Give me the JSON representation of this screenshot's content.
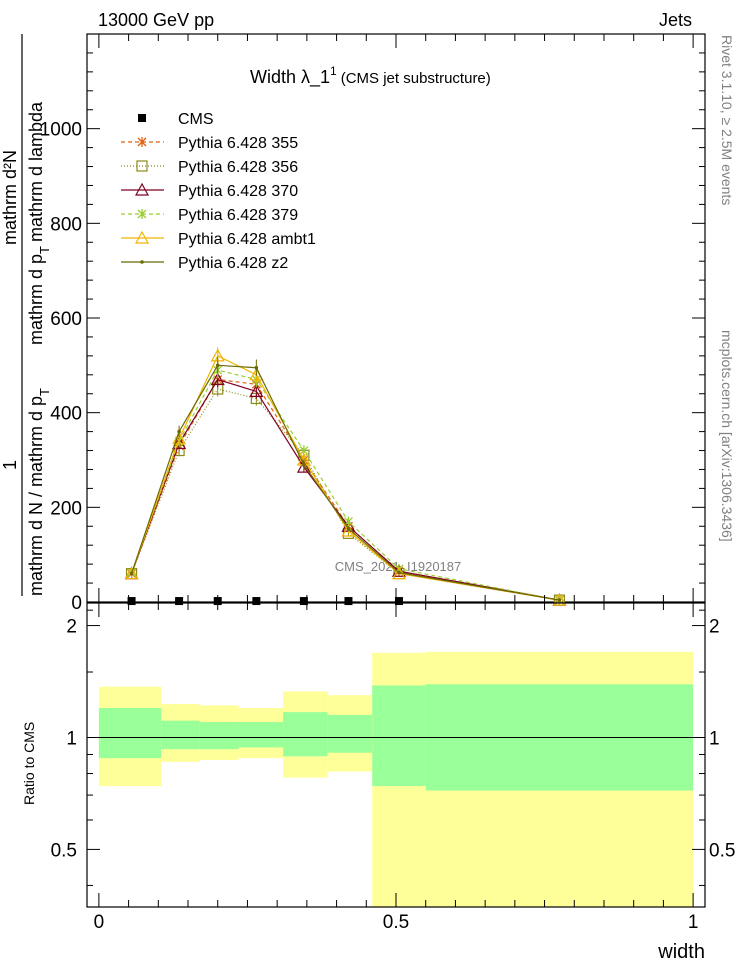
{
  "header": {
    "left": "13000 GeV pp",
    "right": "Jets"
  },
  "side_labels": {
    "rivet": "Rivet 3.1.10, ≥ 2.5M events",
    "mcplots": "mcplots.cern.ch [arXiv:1306.3436]"
  },
  "watermark": "CMS_2021_I1920187",
  "chart_data": [
    {
      "type": "line",
      "title_main": "Width λ_1",
      "title_sup": "1",
      "title_sub": "(CMS jet substructure)",
      "ylabel": {
        "numerator_one": "1",
        "denominator": "mathrm d N / mathrm d p",
        "denominator_sub": "T",
        "fraction_num": "mathrm d²N",
        "fraction_den": "mathrm d p",
        "fraction_den_sub": "T",
        "fraction_den_tail": "mathrm d lambda"
      },
      "xlim": [
        -0.02,
        1.02
      ],
      "ylim": [
        0,
        1200
      ],
      "yticks": [
        0,
        200,
        400,
        600,
        800,
        1000
      ],
      "ytick_labels": [
        "0",
        "200",
        "400",
        "600",
        "800",
        "1000"
      ],
      "x": [
        0.055,
        0.135,
        0.2,
        0.265,
        0.345,
        0.42,
        0.505,
        0.775
      ],
      "series": [
        {
          "name": "CMS",
          "color": "#000000",
          "marker": "square-filled",
          "dash": "none",
          "values": [
            2,
            2,
            2,
            2,
            2,
            2,
            2,
            null
          ]
        },
        {
          "name": "Pythia 6.428 355",
          "color": "#e06010",
          "marker": "star",
          "dash": "4,3",
          "values": [
            60,
            330,
            470,
            460,
            300,
            160,
            65,
            4
          ]
        },
        {
          "name": "Pythia 6.428 356",
          "color": "#8b8b1a",
          "marker": "square-open",
          "dash": "1,2",
          "values": [
            60,
            320,
            450,
            430,
            310,
            145,
            60,
            4
          ]
        },
        {
          "name": "Pythia 6.428 370",
          "color": "#800020",
          "marker": "triangle-open",
          "dash": "none",
          "values": [
            60,
            335,
            470,
            445,
            285,
            160,
            65,
            4
          ]
        },
        {
          "name": "Pythia 6.428 379",
          "color": "#9acd32",
          "marker": "star",
          "dash": "4,3",
          "values": [
            62,
            340,
            490,
            470,
            320,
            170,
            70,
            4
          ]
        },
        {
          "name": "Pythia 6.428 ambt1",
          "color": "#f0b400",
          "marker": "triangle-open",
          "dash": "none",
          "values": [
            60,
            345,
            520,
            480,
            300,
            150,
            60,
            4
          ]
        },
        {
          "name": "Pythia 6.428 z2",
          "color": "#6b6b00",
          "marker": "dot",
          "dash": "none",
          "values": [
            60,
            360,
            500,
            495,
            290,
            155,
            62,
            4
          ]
        }
      ]
    },
    {
      "type": "area",
      "ylabel": "Ratio to CMS",
      "xlabel": "width",
      "xlim": [
        -0.02,
        1.02
      ],
      "ylim": [
        0.35,
        2.3
      ],
      "yticks": [
        0.5,
        1,
        2
      ],
      "ytick_labels": [
        "0.5",
        "1",
        "2"
      ],
      "xticks": [
        0,
        0.5,
        1
      ],
      "xtick_labels": [
        "0",
        "0.5",
        "1"
      ],
      "bins": [
        0,
        0.105,
        0.17,
        0.235,
        0.31,
        0.385,
        0.46,
        0.55,
        1.0
      ],
      "band_outer_lo": [
        0.74,
        0.86,
        0.87,
        0.88,
        0.78,
        0.81,
        0.35,
        0.35
      ],
      "band_outer_hi": [
        1.37,
        1.23,
        1.22,
        1.2,
        1.33,
        1.3,
        1.69,
        1.7
      ],
      "band_inner_lo": [
        0.88,
        0.93,
        0.93,
        0.94,
        0.89,
        0.91,
        0.74,
        0.72
      ],
      "band_inner_hi": [
        1.2,
        1.11,
        1.1,
        1.1,
        1.17,
        1.15,
        1.38,
        1.39
      ],
      "colors": {
        "outer": "#ffff99",
        "inner": "#99ff99"
      }
    }
  ]
}
